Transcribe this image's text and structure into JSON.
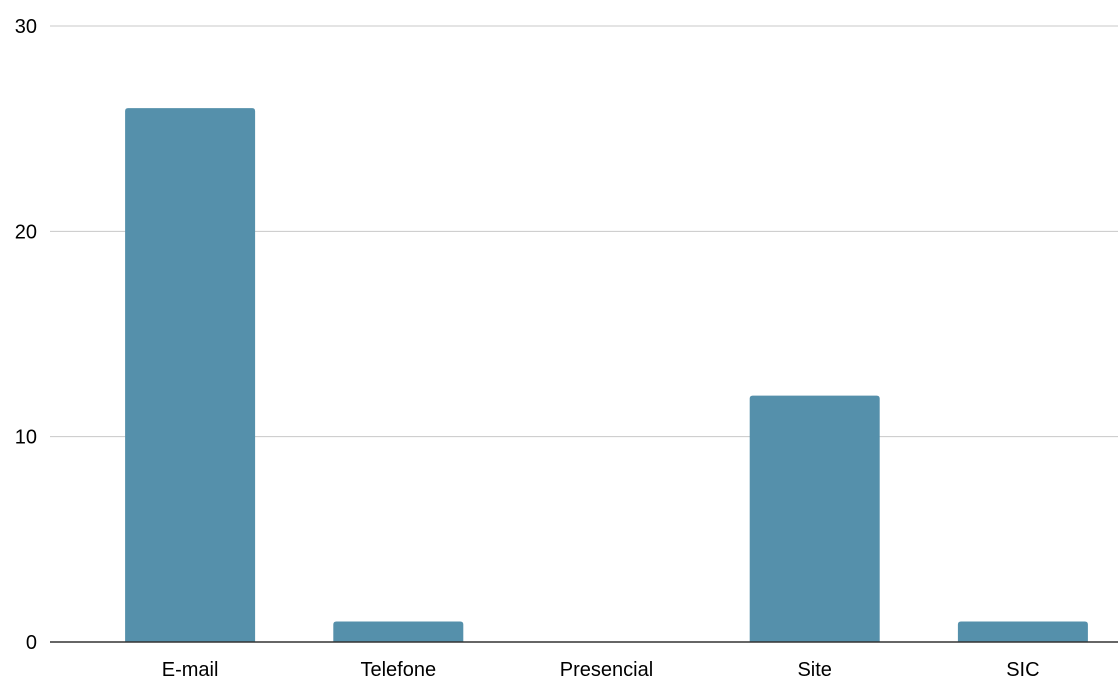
{
  "chart_data": {
    "type": "bar",
    "categories": [
      "E-mail",
      "Telefone",
      "Presencial",
      "Site",
      "SIC"
    ],
    "values": [
      26,
      1,
      0,
      12,
      1
    ],
    "ylim": [
      0,
      30
    ],
    "yticks": [
      0,
      10,
      20,
      30
    ],
    "ytick_labels": [
      "0",
      "10",
      "20",
      "30"
    ],
    "grid": true,
    "legend": "none",
    "colors": {
      "bar": "#5590AB",
      "grid": "#c8c8c8",
      "axis": "#333333"
    }
  }
}
